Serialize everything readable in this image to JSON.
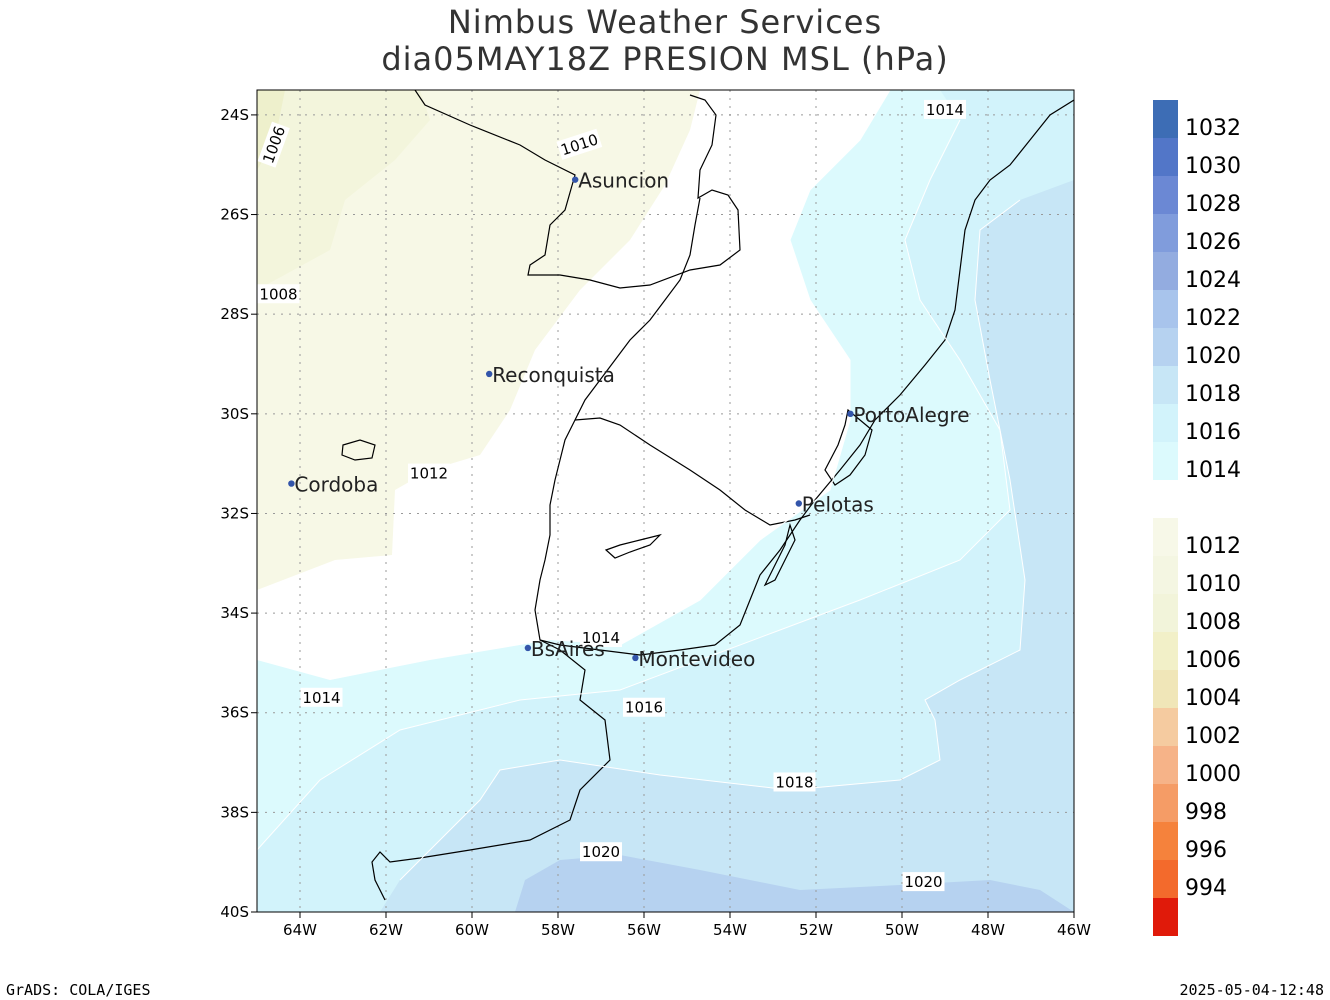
{
  "title": {
    "line1": "Nimbus Weather Services",
    "line2": "dia05MAY18Z PRESION MSL (hPa)"
  },
  "footer": {
    "left": "GrADS: COLA/IGES",
    "right": "2025-05-04-12:48"
  },
  "map": {
    "lon_range": [
      -65,
      -46
    ],
    "lat_range": [
      -40,
      -23.5
    ],
    "lon_ticks": [
      {
        "lon": -64,
        "label": "64W"
      },
      {
        "lon": -62,
        "label": "62W"
      },
      {
        "lon": -60,
        "label": "60W"
      },
      {
        "lon": -58,
        "label": "58W"
      },
      {
        "lon": -56,
        "label": "56W"
      },
      {
        "lon": -54,
        "label": "54W"
      },
      {
        "lon": -52,
        "label": "52W"
      },
      {
        "lon": -50,
        "label": "50W"
      },
      {
        "lon": -48,
        "label": "48W"
      },
      {
        "lon": -46,
        "label": "46W"
      }
    ],
    "lat_ticks": [
      {
        "lat": -24,
        "label": "24S"
      },
      {
        "lat": -26,
        "label": "26S"
      },
      {
        "lat": -28,
        "label": "28S"
      },
      {
        "lat": -30,
        "label": "30S"
      },
      {
        "lat": -32,
        "label": "32S"
      },
      {
        "lat": -34,
        "label": "34S"
      },
      {
        "lat": -36,
        "label": "36S"
      },
      {
        "lat": -38,
        "label": "38S"
      },
      {
        "lat": -40,
        "label": "40S"
      }
    ],
    "cities": [
      {
        "name": "Asuncion",
        "lon": -57.6,
        "lat": -25.3
      },
      {
        "name": "Reconquista",
        "lon": -59.6,
        "lat": -29.2
      },
      {
        "name": "Cordoba",
        "lon": -64.2,
        "lat": -31.4
      },
      {
        "name": "PortoAlegre",
        "lon": -51.2,
        "lat": -30.0
      },
      {
        "name": "Pelotas",
        "lon": -52.4,
        "lat": -31.8
      },
      {
        "name": "BsAires",
        "lon": -58.7,
        "lat": -34.7
      },
      {
        "name": "Montevideo",
        "lon": -56.2,
        "lat": -34.9
      }
    ],
    "contour_labels": [
      {
        "text": "1006",
        "lon": -64.6,
        "lat": -24.6,
        "rotate": -70
      },
      {
        "text": "1010",
        "lon": -57.5,
        "lat": -24.6,
        "rotate": -18
      },
      {
        "text": "1008",
        "lon": -64.5,
        "lat": -27.6,
        "rotate": 0
      },
      {
        "text": "1012",
        "lon": -61.0,
        "lat": -31.2,
        "rotate": 0
      },
      {
        "text": "1014",
        "lon": -49.0,
        "lat": -23.9,
        "rotate": 0
      },
      {
        "text": "1014",
        "lon": -57.0,
        "lat": -34.5,
        "rotate": 0
      },
      {
        "text": "1014",
        "lon": -63.5,
        "lat": -35.7,
        "rotate": 0
      },
      {
        "text": "1016",
        "lon": -56.0,
        "lat": -35.9,
        "rotate": 0
      },
      {
        "text": "1018",
        "lon": -52.5,
        "lat": -37.4,
        "rotate": 0
      },
      {
        "text": "1020",
        "lon": -57.0,
        "lat": -38.8,
        "rotate": 0
      },
      {
        "text": "1020",
        "lon": -49.5,
        "lat": -39.4,
        "rotate": 0
      }
    ]
  },
  "legend": {
    "entries": [
      {
        "label": "1032",
        "color": "#3d6db5"
      },
      {
        "label": "1030",
        "color": "#5276c8"
      },
      {
        "label": "1028",
        "color": "#6b88d4"
      },
      {
        "label": "1026",
        "color": "#809cdc"
      },
      {
        "label": "1024",
        "color": "#93ace0"
      },
      {
        "label": "1022",
        "color": "#a8c4ec"
      },
      {
        "label": "1020",
        "color": "#b6d2f0"
      },
      {
        "label": "1018",
        "color": "#c7e6f6"
      },
      {
        "label": "1016",
        "color": "#d2f3fb"
      },
      {
        "label": "1014",
        "color": "#dcfafd"
      },
      {
        "label": "",
        "color": "#ffffff"
      },
      {
        "label": "1012",
        "color": "#f7f8e8"
      },
      {
        "label": "1010",
        "color": "#f4f6e2"
      },
      {
        "label": "1008",
        "color": "#f2f4da"
      },
      {
        "label": "1006",
        "color": "#f2f0c8"
      },
      {
        "label": "1004",
        "color": "#f0e6b8"
      },
      {
        "label": "1002",
        "color": "#f5cba0"
      },
      {
        "label": "1000",
        "color": "#f6b388"
      },
      {
        "label": "998",
        "color": "#f59c66"
      },
      {
        "label": "996",
        "color": "#f5823c"
      },
      {
        "label": "994",
        "color": "#f36a2c"
      },
      {
        "label": "",
        "color": "#e01a0a"
      }
    ]
  }
}
